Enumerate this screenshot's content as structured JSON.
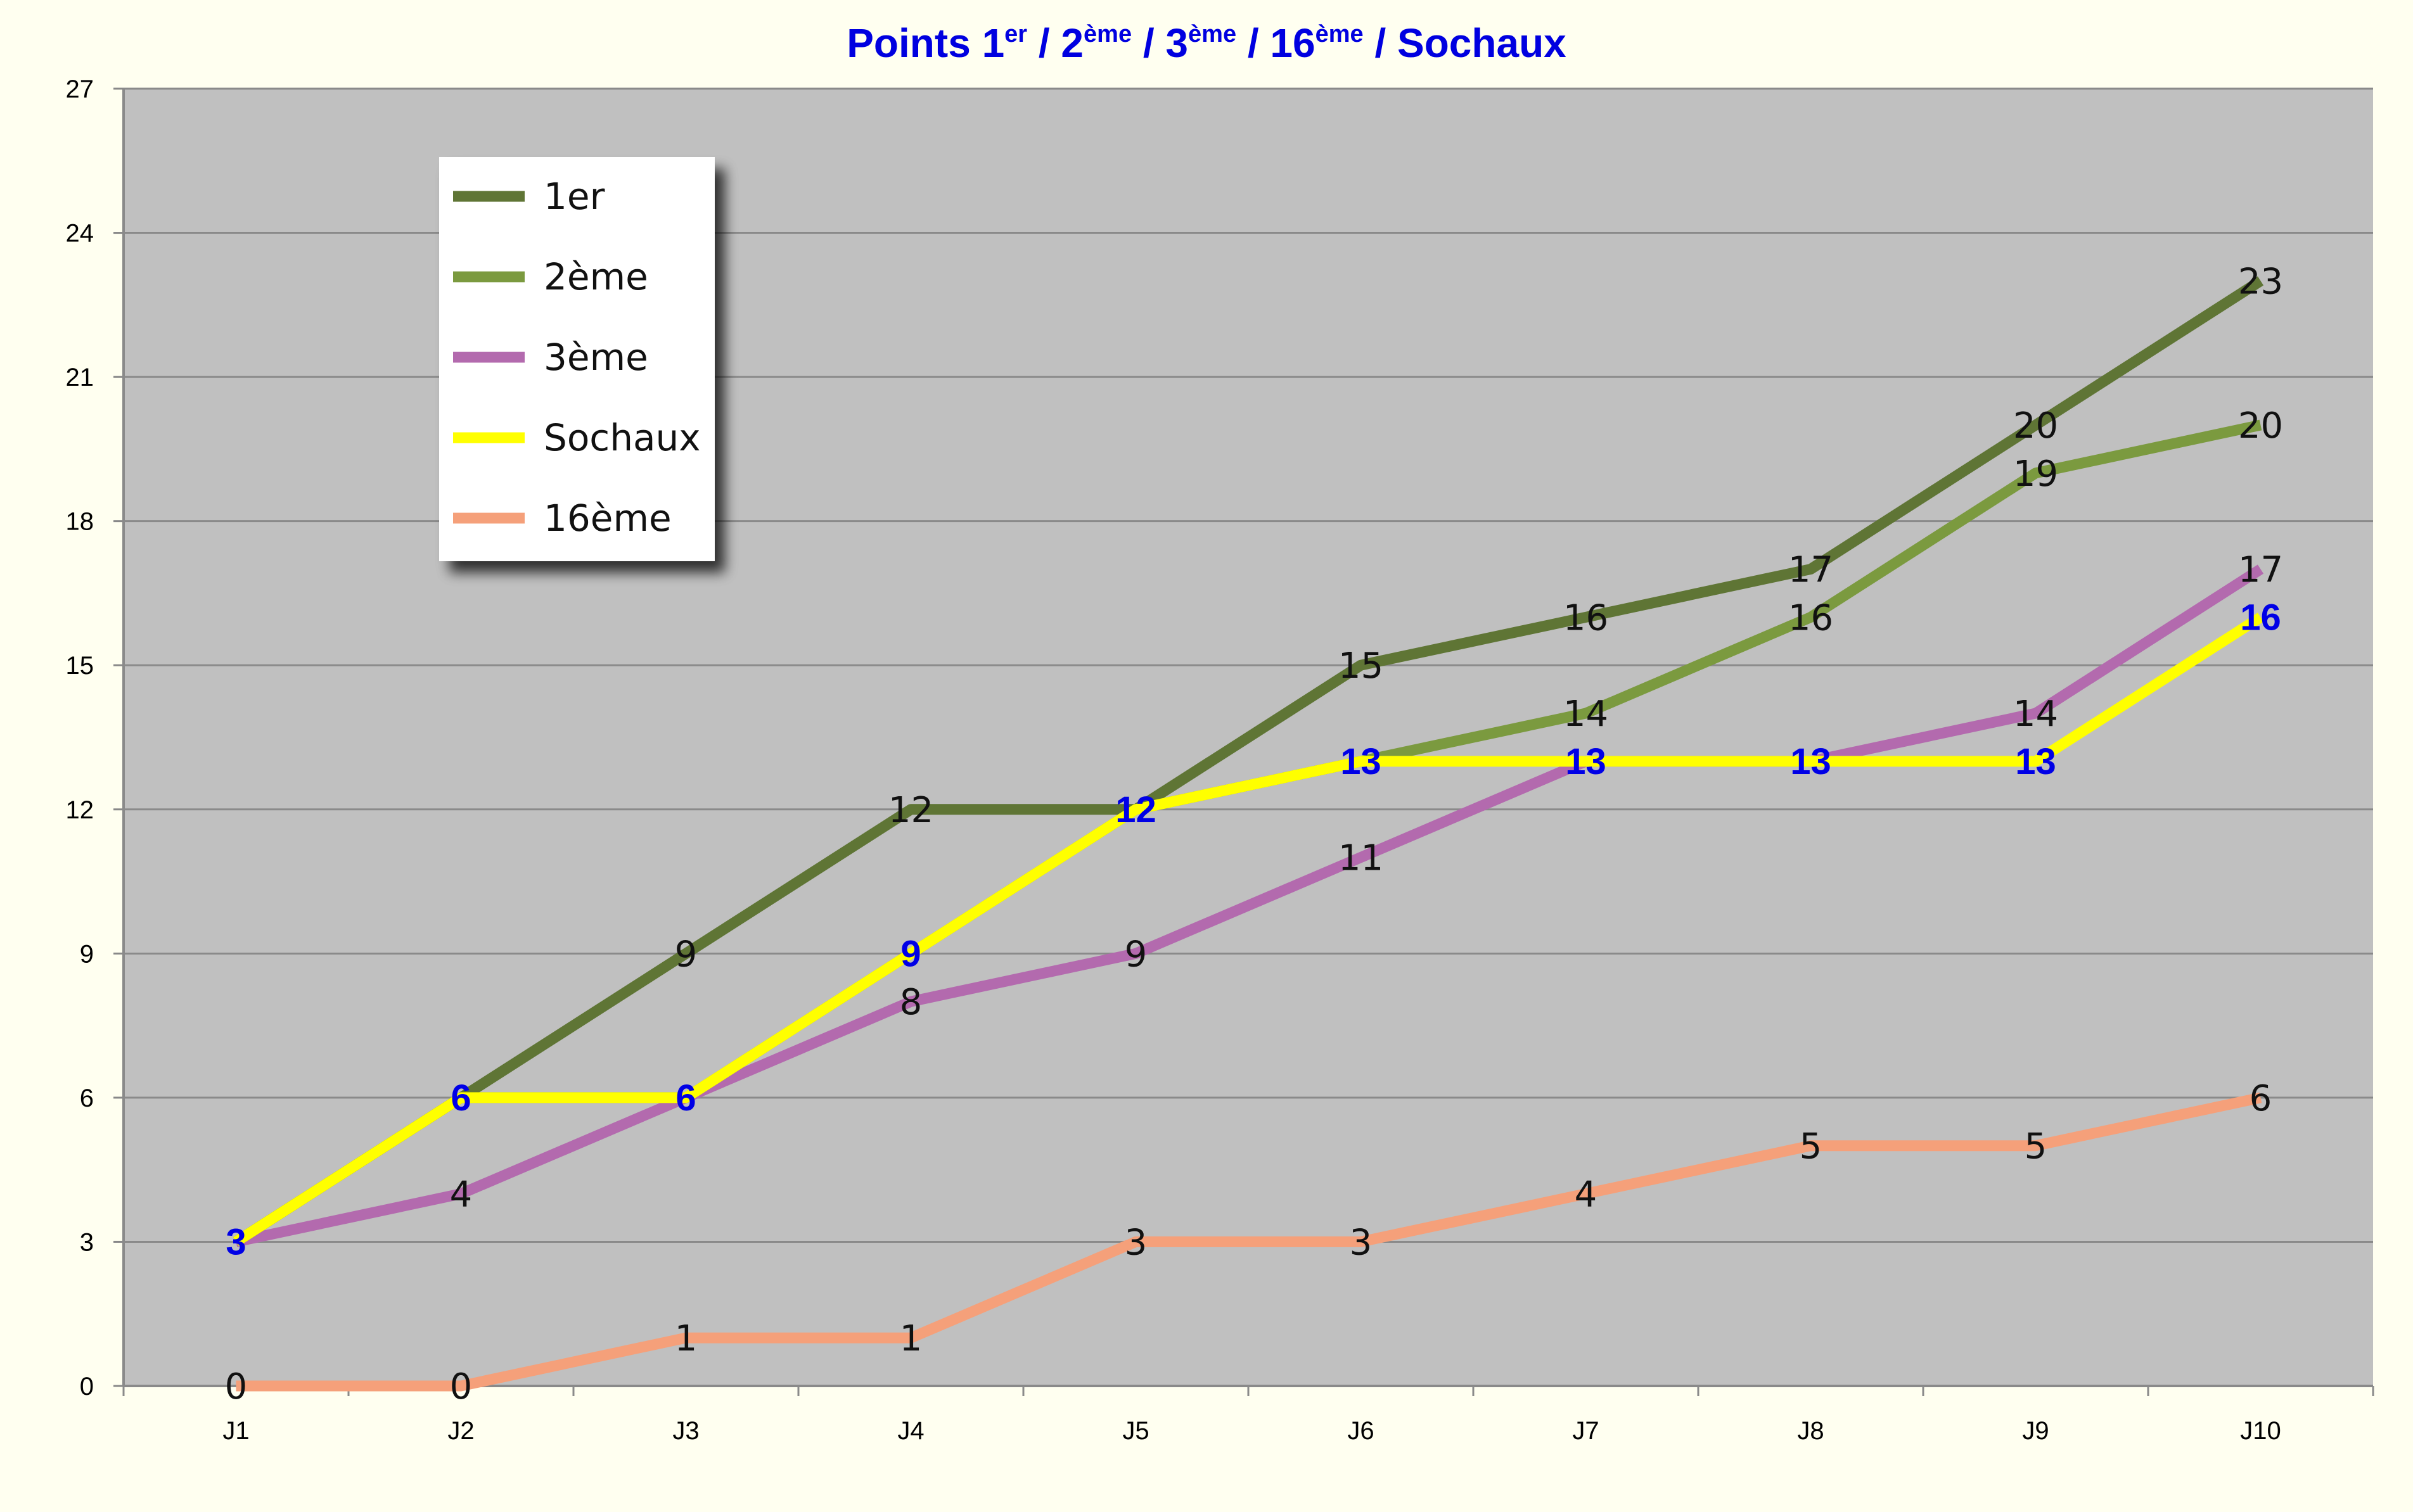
{
  "chart_data": {
    "type": "line",
    "title": {
      "parts": [
        {
          "text": "Points 1"
        },
        {
          "text": "er",
          "sup": true
        },
        {
          "text": " / 2"
        },
        {
          "text": "ème",
          "sup": true
        },
        {
          "text": " / 3"
        },
        {
          "text": "ème",
          "sup": true
        },
        {
          "text": " / 16"
        },
        {
          "text": "ème",
          "sup": true
        },
        {
          "text": " / Sochaux"
        }
      ]
    },
    "categories": [
      "J1",
      "J2",
      "J3",
      "J4",
      "J5",
      "J6",
      "J7",
      "J8",
      "J9",
      "J10"
    ],
    "ylim": [
      0,
      27
    ],
    "yticks": [
      "0",
      "3",
      "6",
      "9",
      "12",
      "15",
      "18",
      "21",
      "24",
      "27"
    ],
    "grid": true,
    "legend_position": "top-left",
    "series": [
      {
        "name": "1er",
        "color": "#5f7535",
        "label_style": "black",
        "values": [
          3,
          6,
          9,
          12,
          12,
          15,
          16,
          17,
          20,
          23
        ],
        "labels": [
          "",
          "",
          "9",
          "12",
          "",
          "15",
          "16",
          "17",
          "20",
          "23"
        ]
      },
      {
        "name": "2ème",
        "color": "#7b9a3f",
        "label_style": "black",
        "values": [
          3,
          6,
          6,
          9,
          12,
          13,
          14,
          16,
          19,
          20
        ],
        "labels": [
          "",
          "",
          "",
          "",
          "",
          "",
          "14",
          "16",
          "19",
          "20"
        ]
      },
      {
        "name": "3ème",
        "color": "#b36aae",
        "label_style": "black",
        "values": [
          3,
          4,
          6,
          8,
          9,
          11,
          13,
          13,
          14,
          17
        ],
        "labels": [
          "",
          "4",
          "",
          "8",
          "9",
          "11",
          "",
          "",
          "14",
          "17"
        ]
      },
      {
        "name": "Sochaux",
        "color": "#ffff00",
        "label_style": "blue",
        "values": [
          3,
          6,
          6,
          9,
          12,
          13,
          13,
          13,
          13,
          16
        ],
        "labels": [
          "3",
          "6",
          "6",
          "9",
          "12",
          "13",
          "13",
          "13",
          "13",
          "16"
        ]
      },
      {
        "name": "16ème",
        "color": "#f5a07a",
        "label_style": "black",
        "values": [
          0,
          0,
          1,
          1,
          3,
          3,
          4,
          5,
          5,
          6
        ],
        "labels": [
          "0",
          "0",
          "1",
          "1",
          "3",
          "3",
          "4",
          "5",
          "5",
          "6"
        ]
      }
    ],
    "legend_order": [
      0,
      1,
      2,
      3,
      4
    ]
  }
}
